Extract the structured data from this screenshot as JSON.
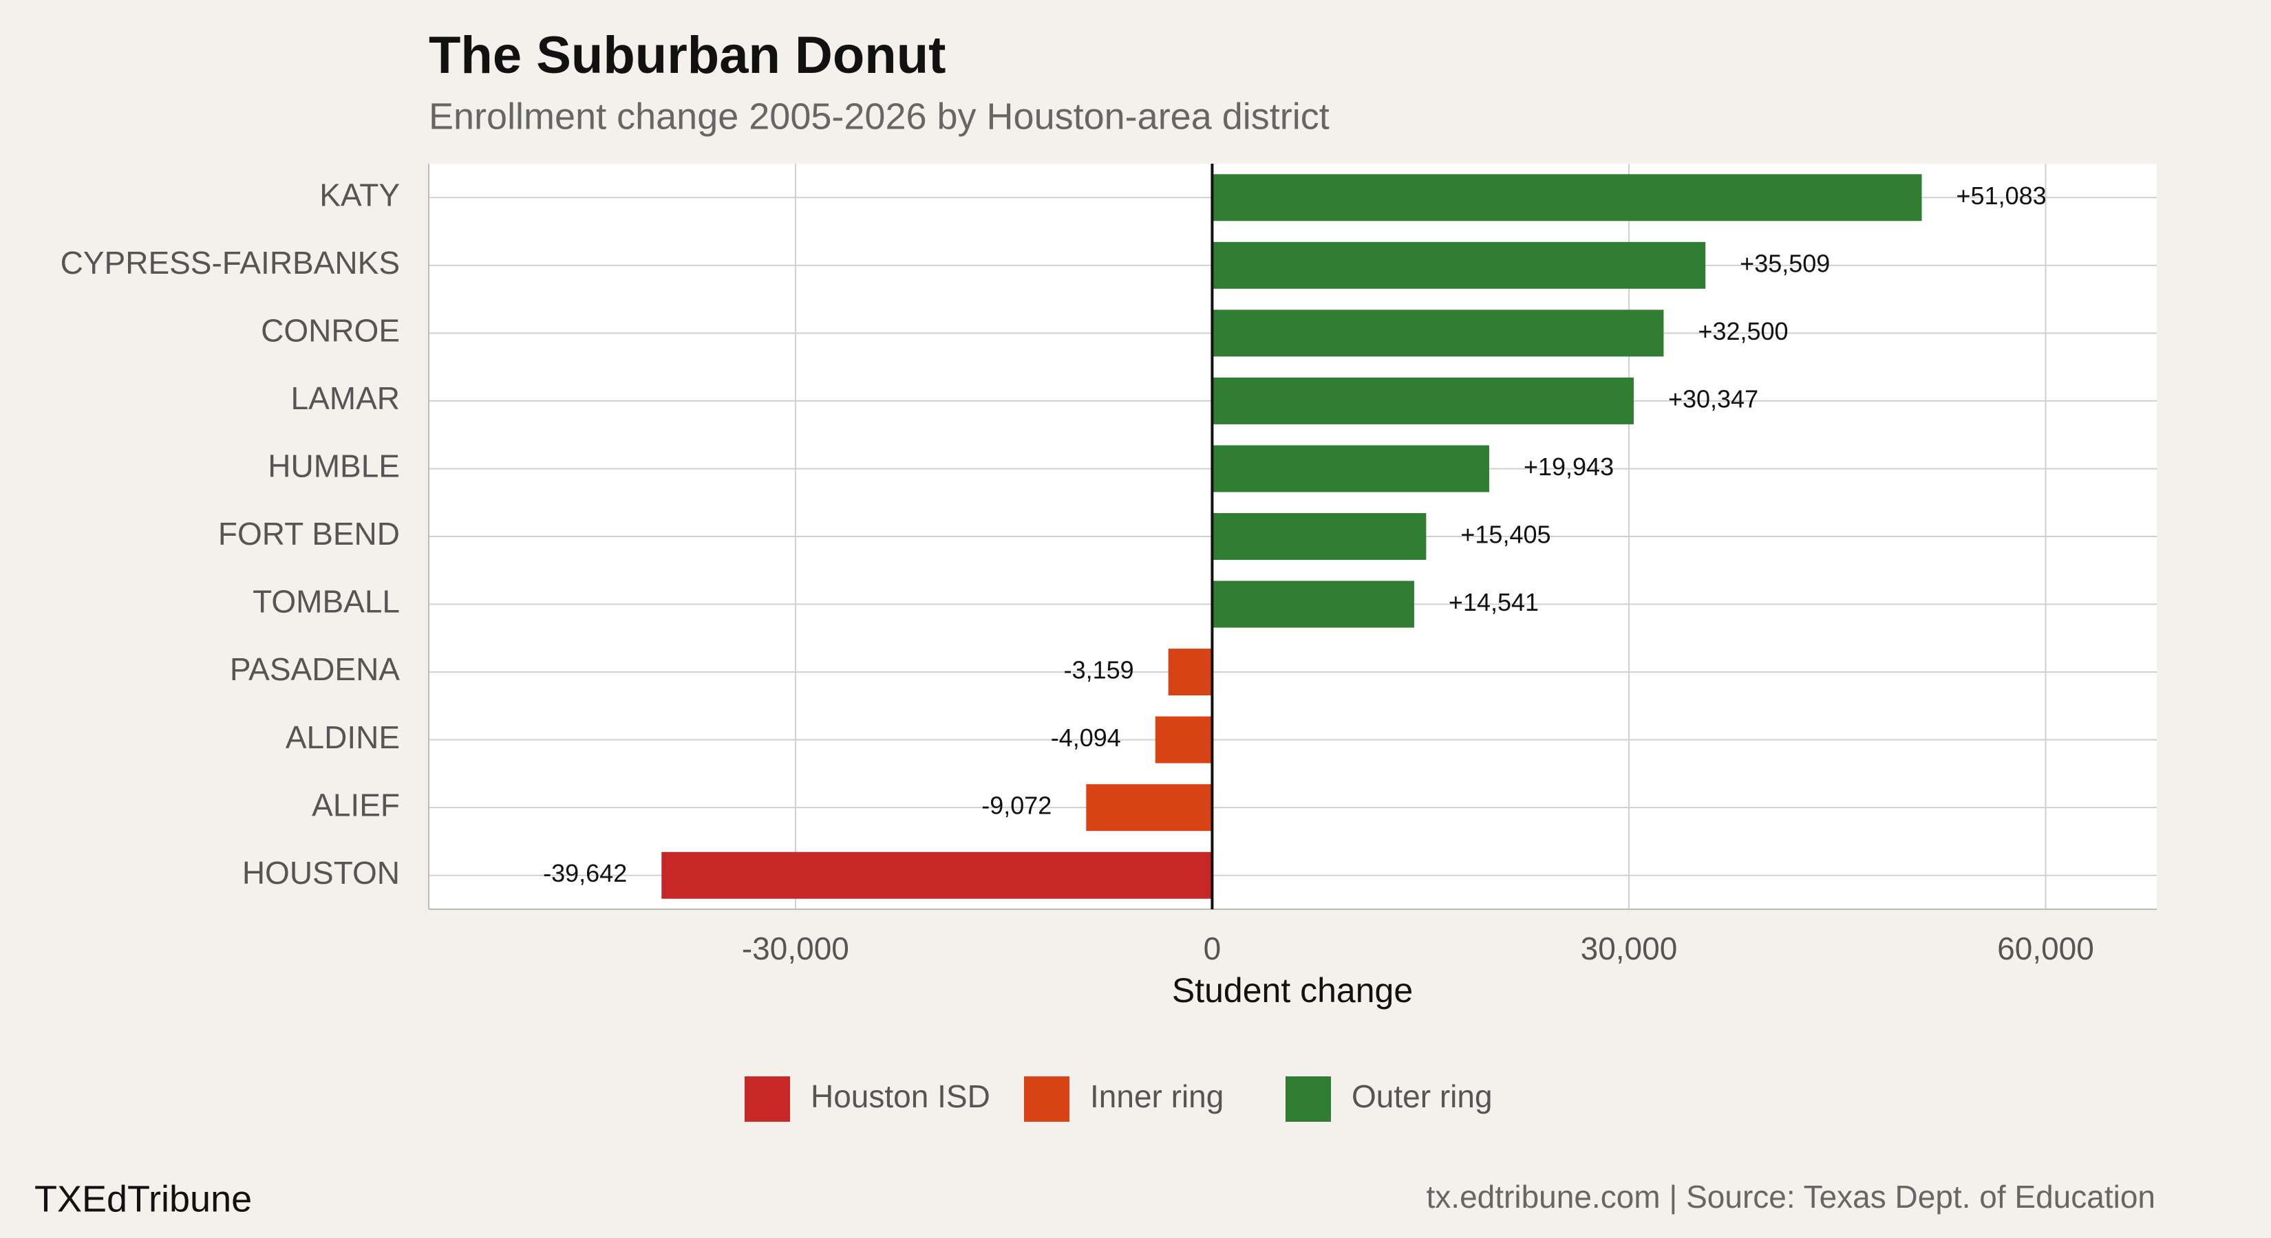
{
  "chart_data": {
    "type": "bar",
    "orientation": "horizontal",
    "title": "The Suburban Donut",
    "subtitle": "Enrollment change 2005-2026 by Houston-area district",
    "x_label": "Student change",
    "brand": "TXEdTribune",
    "caption": "tx.edtribune.com | Source: Texas Dept. of Education",
    "categories": [
      "KATY",
      "CYPRESS-FAIRBANKS",
      "CONROE",
      "LAMAR",
      "HUMBLE",
      "FORT BEND",
      "TOMBALL",
      "PASADENA",
      "ALDINE",
      "ALIEF",
      "HOUSTON"
    ],
    "series": [
      {
        "name": "Houston ISD",
        "color": "#c62828",
        "values": [
          null,
          null,
          null,
          null,
          null,
          null,
          null,
          null,
          null,
          null,
          -39642
        ],
        "value_labels": [
          null,
          null,
          null,
          null,
          null,
          null,
          null,
          null,
          null,
          null,
          "-39,642"
        ]
      },
      {
        "name": "Inner ring",
        "color": "#d84315",
        "values": [
          null,
          null,
          null,
          null,
          null,
          null,
          null,
          -3159,
          -4094,
          -9072,
          null
        ],
        "value_labels": [
          null,
          null,
          null,
          null,
          null,
          null,
          null,
          "-3,159",
          "-4,094",
          "-9,072",
          null
        ]
      },
      {
        "name": "Outer ring",
        "color": "#2e7d32",
        "values": [
          51083,
          35509,
          32500,
          30347,
          19943,
          15405,
          14541,
          null,
          null,
          null,
          null
        ],
        "value_labels": [
          "+51,083",
          "+35,509",
          "+32,500",
          "+30,347",
          "+19,943",
          "+15,405",
          "+14,541",
          null,
          null,
          null,
          null
        ]
      }
    ],
    "xlim": [
      -56400,
      68000
    ],
    "xticks": [
      {
        "value": -30000,
        "label": "-30,000"
      },
      0,
      {
        "value": 30000,
        "label": "30,000"
      },
      {
        "value": 60000,
        "label": "60,000"
      }
    ],
    "grid": true,
    "legend": "bottom"
  }
}
